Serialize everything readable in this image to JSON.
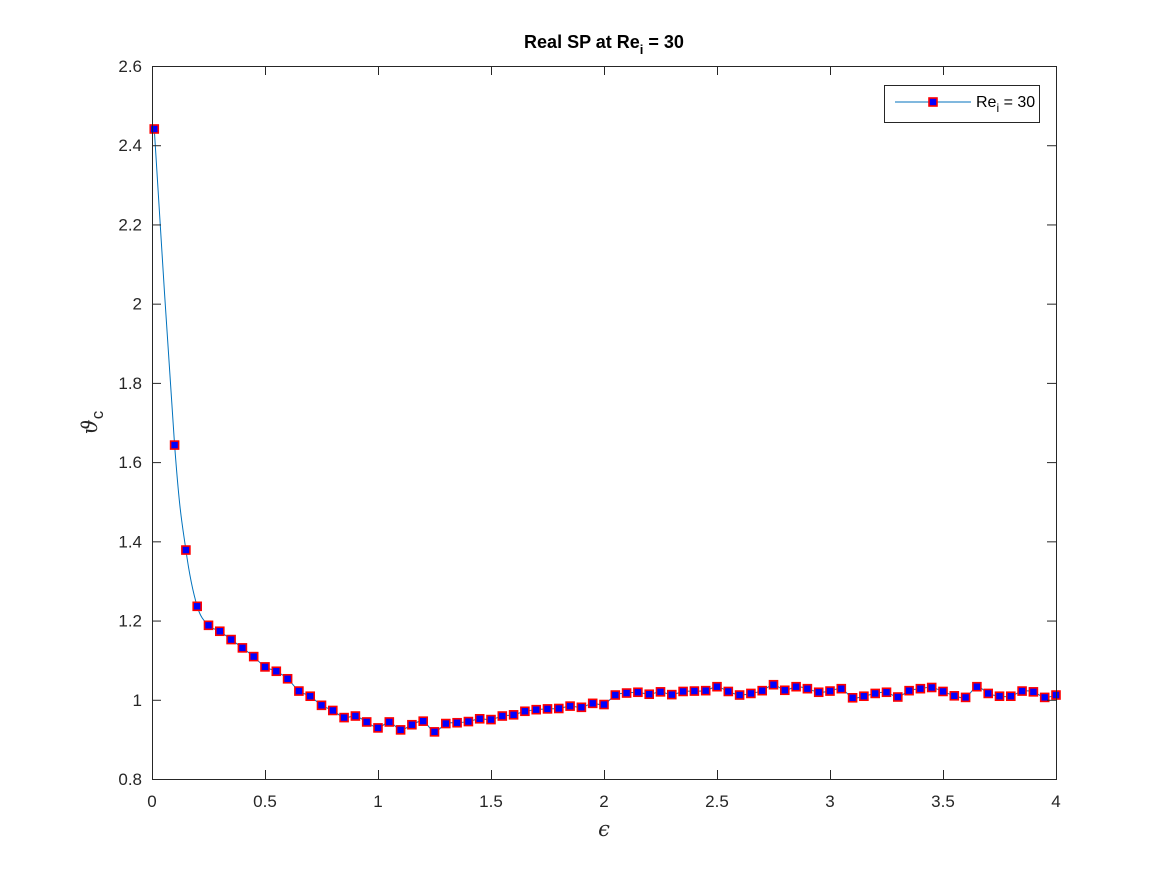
{
  "chart_data": {
    "type": "line",
    "title": "Real SP at Re",
    "title_subscript": "i",
    "title_suffix": " = 30",
    "xlabel": "ϵ",
    "ylabel": "ϑ",
    "ylabel_subscript": "c",
    "xlim": [
      0,
      4
    ],
    "ylim": [
      0.8,
      2.6
    ],
    "x_ticks": [
      0,
      0.5,
      1,
      1.5,
      2,
      2.5,
      3,
      3.5,
      4
    ],
    "x_tick_labels": [
      "0",
      "0.5",
      "1",
      "1.5",
      "2",
      "2.5",
      "3",
      "3.5",
      "4"
    ],
    "y_ticks": [
      0.8,
      1.0,
      1.2,
      1.4,
      1.6,
      1.8,
      2.0,
      2.2,
      2.4,
      2.6
    ],
    "y_tick_labels": [
      "0.8",
      "1",
      "1.2",
      "1.4",
      "1.6",
      "1.8",
      "2",
      "2.2",
      "2.4",
      "2.6"
    ],
    "grid": false,
    "legend_position": "top-right",
    "series": [
      {
        "name": "Re",
        "name_subscript": "i",
        "name_suffix": " = 30",
        "line_color": "#0072BD",
        "marker": "square",
        "marker_face_color": "#0000FF",
        "marker_edge_color": "#FF0000",
        "x": [
          0.01,
          0.1,
          0.15,
          0.2,
          0.25,
          0.3,
          0.35,
          0.4,
          0.45,
          0.5,
          0.55,
          0.6,
          0.65,
          0.7,
          0.75,
          0.8,
          0.85,
          0.9,
          0.95,
          1.0,
          1.05,
          1.1,
          1.15,
          1.2,
          1.25,
          1.3,
          1.35,
          1.4,
          1.45,
          1.5,
          1.55,
          1.6,
          1.65,
          1.7,
          1.75,
          1.8,
          1.85,
          1.9,
          1.95,
          2.0,
          2.05,
          2.1,
          2.15,
          2.2,
          2.25,
          2.3,
          2.35,
          2.4,
          2.45,
          2.5,
          2.55,
          2.6,
          2.65,
          2.7,
          2.75,
          2.8,
          2.85,
          2.9,
          2.95,
          3.0,
          3.05,
          3.1,
          3.15,
          3.2,
          3.25,
          3.3,
          3.35,
          3.4,
          3.45,
          3.5,
          3.55,
          3.6,
          3.65,
          3.7,
          3.75,
          3.8,
          3.85,
          3.9,
          3.95,
          4.0
        ],
        "y": [
          2.441,
          1.643,
          1.378,
          1.236,
          1.188,
          1.173,
          1.152,
          1.131,
          1.109,
          1.083,
          1.072,
          1.053,
          1.022,
          1.009,
          0.986,
          0.973,
          0.955,
          0.959,
          0.944,
          0.929,
          0.944,
          0.924,
          0.937,
          0.946,
          0.919,
          0.94,
          0.942,
          0.945,
          0.952,
          0.95,
          0.959,
          0.962,
          0.971,
          0.975,
          0.977,
          0.978,
          0.984,
          0.981,
          0.991,
          0.988,
          1.012,
          1.017,
          1.019,
          1.014,
          1.02,
          1.013,
          1.021,
          1.022,
          1.023,
          1.033,
          1.021,
          1.012,
          1.016,
          1.023,
          1.038,
          1.024,
          1.033,
          1.028,
          1.019,
          1.022,
          1.028,
          1.005,
          1.009,
          1.016,
          1.019,
          1.007,
          1.023,
          1.028,
          1.031,
          1.021,
          1.01,
          1.006,
          1.033,
          1.016,
          1.009,
          1.009,
          1.022,
          1.02,
          1.006,
          1.012
        ]
      }
    ]
  }
}
